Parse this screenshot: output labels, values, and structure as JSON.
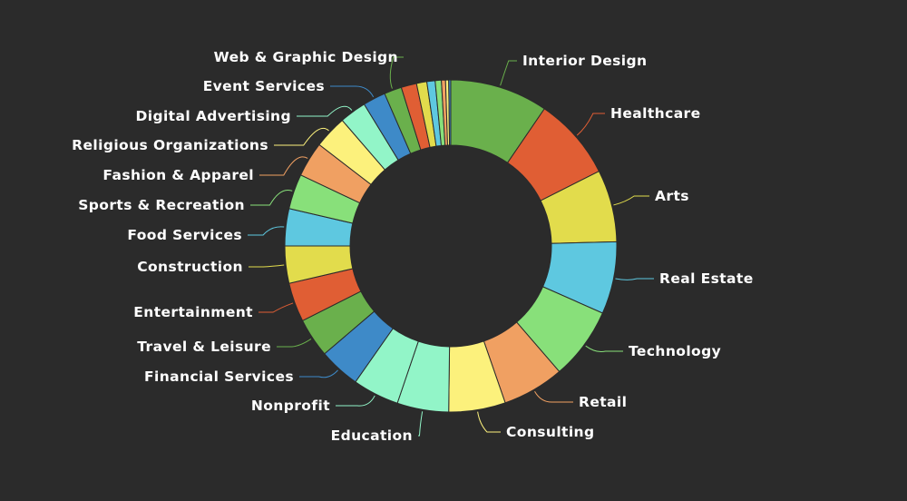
{
  "chart_data": {
    "type": "pie",
    "variant": "donut",
    "title": "",
    "legend": "none",
    "slices": [
      {
        "label": "Interior Design",
        "value": 9.5,
        "color": "#6ab04c"
      },
      {
        "label": "Healthcare",
        "value": 8.0,
        "color": "#e05e34"
      },
      {
        "label": "Arts",
        "value": 7.0,
        "color": "#e2dc4c"
      },
      {
        "label": "Real Estate",
        "value": 7.0,
        "color": "#5ec8e0"
      },
      {
        "label": "Technology",
        "value": 7.0,
        "color": "#88e07a"
      },
      {
        "label": "Retail",
        "value": 6.0,
        "color": "#f0a062"
      },
      {
        "label": "Consulting",
        "value": 5.5,
        "color": "#fcf17c"
      },
      {
        "label": "Education",
        "value": 5.0,
        "color": "#92f5c8"
      },
      {
        "label": "Nonprofit",
        "value": 4.5,
        "color": "#92f5c8"
      },
      {
        "label": "Financial Services",
        "value": 4.0,
        "color": "#3e8ac8"
      },
      {
        "label": "Travel & Leisure",
        "value": 3.8,
        "color": "#6ab04c"
      },
      {
        "label": "Entertainment",
        "value": 3.8,
        "color": "#e05e34"
      },
      {
        "label": "Construction",
        "value": 3.6,
        "color": "#e2dc4c"
      },
      {
        "label": "Food Services",
        "value": 3.6,
        "color": "#5ec8e0"
      },
      {
        "label": "Sports & Recreation",
        "value": 3.4,
        "color": "#88e07a"
      },
      {
        "label": "Fashion & Apparel",
        "value": 3.4,
        "color": "#f0a062"
      },
      {
        "label": "Religious Organizations",
        "value": 3.2,
        "color": "#fcf17c"
      },
      {
        "label": "Digital Advertising",
        "value": 2.6,
        "color": "#92f5c8"
      },
      {
        "label": "Event Services",
        "value": 2.2,
        "color": "#3e8ac8"
      },
      {
        "label": "Web & Graphic Design",
        "value": 1.7,
        "color": "#6ab04c"
      },
      {
        "label": "",
        "value": 1.5,
        "color": "#e05e34"
      },
      {
        "label": "",
        "value": 1.0,
        "color": "#e2dc4c"
      },
      {
        "label": "",
        "value": 0.8,
        "color": "#5ec8e0"
      },
      {
        "label": "",
        "value": 0.6,
        "color": "#88e07a"
      },
      {
        "label": "",
        "value": 0.4,
        "color": "#f0a062"
      },
      {
        "label": "",
        "value": 0.3,
        "color": "#fcf17c"
      },
      {
        "label": "",
        "value": 0.2,
        "color": "#3e8ac8"
      }
    ]
  }
}
